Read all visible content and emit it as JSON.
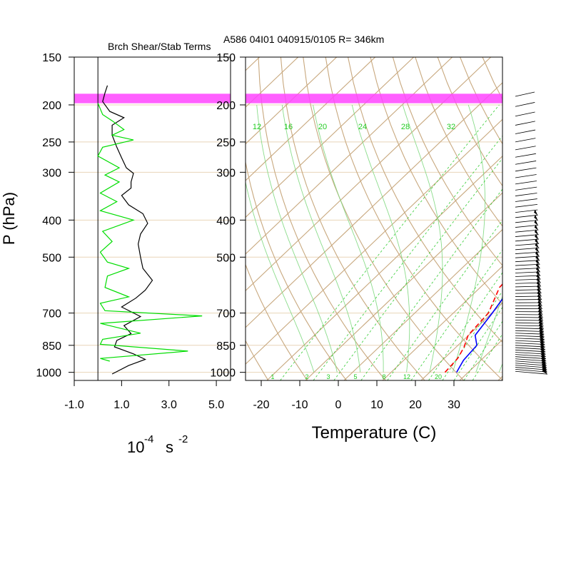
{
  "chart_data": [
    {
      "type": "line",
      "title": "Brch Shear/Stab Terms",
      "xlabel": "10^-4 s^-2",
      "xlabel_base": "10",
      "xlabel_exp": "-4",
      "xlabel_unit": "s",
      "xlabel_unit_exp": "-2",
      "ylabel": "P (hPa)",
      "y_scale": "log",
      "ylim": [
        1050,
        150
      ],
      "xlim": [
        -1.0,
        5.6
      ],
      "x_ticks": [
        -1.0,
        1.0,
        3.0,
        5.0
      ],
      "x_tick_labels": [
        "-1.0",
        "1.0",
        "3.0",
        "5.0"
      ],
      "y_ticks": [
        150,
        200,
        250,
        300,
        400,
        500,
        700,
        850,
        1000
      ],
      "y_tick_labels": [
        "150",
        "200",
        "250",
        "300",
        "400",
        "500",
        "700",
        "850",
        "1000"
      ],
      "highlight_band_p": [
        187,
        198
      ],
      "series": [
        {
          "color": "#000000",
          "points": [
            [
              0.4,
              178
            ],
            [
              0.3,
              186
            ],
            [
              0.2,
              196
            ],
            [
              0.5,
              208
            ],
            [
              1.1,
              216
            ],
            [
              0.6,
              226
            ],
            [
              0.6,
              240
            ],
            [
              0.8,
              258
            ],
            [
              1.0,
              275
            ],
            [
              1.2,
              292
            ],
            [
              1.5,
              302
            ],
            [
              1.4,
              318
            ],
            [
              1.4,
              330
            ],
            [
              1.0,
              345
            ],
            [
              1.3,
              365
            ],
            [
              1.9,
              385
            ],
            [
              2.1,
              408
            ],
            [
              1.8,
              435
            ],
            [
              1.7,
              462
            ],
            [
              1.8,
              500
            ],
            [
              1.9,
              535
            ],
            [
              2.3,
              575
            ],
            [
              2.0,
              610
            ],
            [
              1.6,
              640
            ],
            [
              1.0,
              675
            ],
            [
              1.8,
              715
            ],
            [
              1.1,
              755
            ],
            [
              1.4,
              792
            ],
            [
              0.8,
              825
            ],
            [
              0.7,
              858
            ],
            [
              1.5,
              895
            ],
            [
              2.0,
              925
            ],
            [
              1.3,
              960
            ],
            [
              0.6,
              1010
            ]
          ]
        },
        {
          "color": "#00dd00",
          "points": [
            [
              0.0,
              198
            ],
            [
              0.2,
              212
            ],
            [
              0.6,
              220
            ],
            [
              1.1,
              232
            ],
            [
              0.6,
              240
            ],
            [
              1.5,
              247
            ],
            [
              0.2,
              258
            ],
            [
              0.0,
              272
            ],
            [
              0.9,
              292
            ],
            [
              0.3,
              305
            ],
            [
              0.9,
              318
            ],
            [
              0.1,
              340
            ],
            [
              0.8,
              358
            ],
            [
              0.1,
              378
            ],
            [
              1.5,
              400
            ],
            [
              0.2,
              428
            ],
            [
              0.6,
              455
            ],
            [
              0.1,
              485
            ],
            [
              0.4,
              515
            ],
            [
              1.3,
              535
            ],
            [
              0.4,
              560
            ],
            [
              0.3,
              600
            ],
            [
              1.3,
              635
            ],
            [
              0.1,
              660
            ],
            [
              0.3,
              690
            ],
            [
              4.4,
              712
            ],
            [
              0.1,
              745
            ],
            [
              1.8,
              790
            ],
            [
              0.2,
              820
            ],
            [
              0.1,
              845
            ],
            [
              3.8,
              880
            ],
            [
              0.1,
              920
            ],
            [
              0.5,
              935
            ]
          ]
        }
      ]
    },
    {
      "type": "line",
      "title": "A586 04I01 040915/0105 R= 346km",
      "xlabel": "Temperature (C)",
      "y_scale": "log",
      "ylim": [
        1050,
        150
      ],
      "x_ticks": [
        -20,
        -10,
        0,
        10,
        20,
        30
      ],
      "x_tick_labels": [
        "-20",
        "-10",
        "0",
        "10",
        "20",
        "30"
      ],
      "y_ticks": [
        150,
        200,
        250,
        300,
        400,
        500,
        700,
        850,
        1000
      ],
      "y_tick_labels": [
        "150",
        "200",
        "250",
        "300",
        "400",
        "500",
        "700",
        "850",
        "1000"
      ],
      "highlight_band_p": [
        187,
        198
      ],
      "skew": "skew-T",
      "mixing_ratio_labels": [
        "12",
        "16",
        "20",
        "24",
        "28",
        "32"
      ],
      "mixing_ratio_bottom_labels": [
        "1",
        "2",
        "3",
        "5",
        "8",
        "12",
        "20"
      ],
      "series": [
        {
          "name": "Temperature",
          "color": "#0000ff",
          "style": "solid",
          "points": [
            [
              27.0,
              1000
            ],
            [
              25.5,
              930
            ],
            [
              24.9,
              850
            ],
            [
              21.7,
              800
            ],
            [
              20.1,
              700
            ],
            [
              17.9,
              600
            ],
            [
              17.4,
              500
            ],
            [
              14.4,
              400
            ],
            [
              11.2,
              350
            ],
            [
              6.4,
              300
            ],
            [
              0.8,
              250
            ],
            [
              -5.8,
              200
            ],
            [
              -10.8,
              170
            ]
          ]
        },
        {
          "name": "Dew Point",
          "color": "#ff0000",
          "style": "dashed",
          "points": [
            [
              24.0,
              1000
            ],
            [
              23.5,
              920
            ],
            [
              22.1,
              860
            ],
            [
              19.9,
              800
            ],
            [
              19.1,
              700
            ],
            [
              15.0,
              600
            ],
            [
              14.0,
              500
            ],
            [
              10.5,
              400
            ],
            [
              6.6,
              350
            ],
            [
              2.2,
              300
            ],
            [
              -5.4,
              250
            ],
            [
              -12.5,
              200
            ],
            [
              -15.1,
              190
            ]
          ]
        }
      ]
    }
  ]
}
